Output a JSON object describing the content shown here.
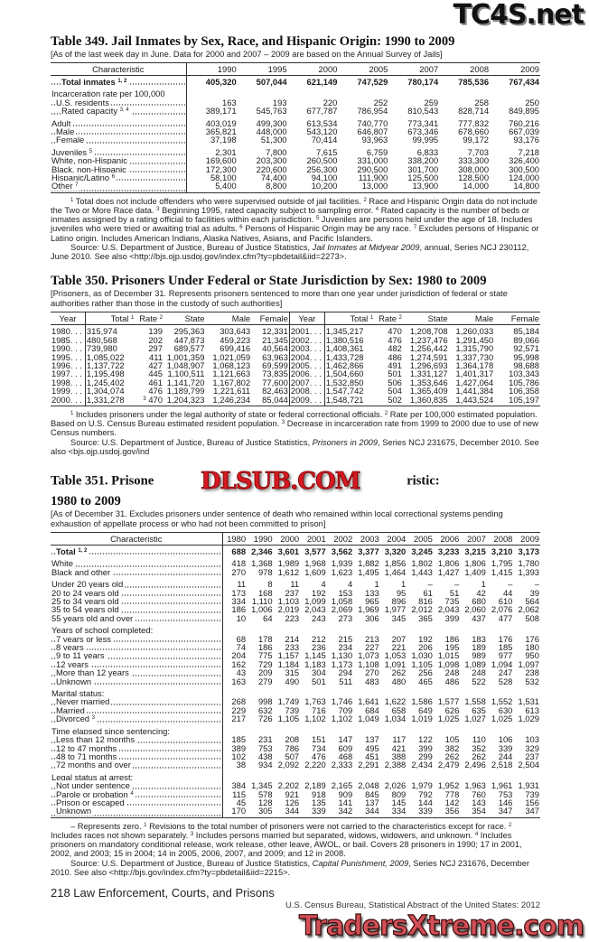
{
  "watermarks": {
    "top": "TC4S.net",
    "middle": "DLSUB.COM",
    "bottom": "TradersXtreme.com"
  },
  "t349": {
    "title": "Table 349. Jail Inmates by Sex, Race, and Hispanic Origin: 1990 to 2009",
    "headnote": "[As of the last week day in June. Data for 2000 and 2007 – 2009 are based on the Annual Survey of Jails]",
    "columns": [
      "Characteristic",
      "1990",
      "1995",
      "2000",
      "2005",
      "2007",
      "2008",
      "2009"
    ],
    "rows": [
      {
        "label": "Total inmates",
        "sup": "1, 2",
        "bold": true,
        "ind": 2,
        "values": [
          "405,320",
          "507,044",
          "621,149",
          "747,529",
          "780,174",
          "785,536",
          "767,434"
        ]
      },
      {
        "label": "Incarceration rate per 100,000",
        "gap": true,
        "values": []
      },
      {
        "label": "U.S. residents",
        "ind": 1,
        "values": [
          "163",
          "193",
          "220",
          "252",
          "259",
          "258",
          "250"
        ]
      },
      {
        "label": "Rated capacity",
        "sup": "3, 4",
        "ind": 2,
        "values": [
          "389,171",
          "545,763",
          "677,787",
          "786,954",
          "810,543",
          "828,714",
          "849,895"
        ]
      },
      {
        "label": "Adult",
        "gap": true,
        "values": [
          "403,019",
          "499,300",
          "613,534",
          "740,770",
          "773,341",
          "777,832",
          "760,216"
        ]
      },
      {
        "label": "Male",
        "ind": 1,
        "values": [
          "365,821",
          "448,000",
          "543,120",
          "646,807",
          "673,346",
          "678,660",
          "667,039"
        ]
      },
      {
        "label": "Female",
        "ind": 1,
        "values": [
          "37,198",
          "51,300",
          "70,414",
          "93,963",
          "99,995",
          "99,172",
          "93,176"
        ]
      },
      {
        "label": "Juveniles",
        "sup": "5",
        "gap": true,
        "values": [
          "2,301",
          "7,800",
          "7,615",
          "6,759",
          "6,833",
          "7,703",
          "7,218"
        ]
      },
      {
        "label": "White, non-Hispanic",
        "values": [
          "169,600",
          "203,300",
          "260,500",
          "331,000",
          "338,200",
          "333,300",
          "326,400"
        ]
      },
      {
        "label": "Black, non-Hispanic",
        "values": [
          "172,300",
          "220,600",
          "256,300",
          "290,500",
          "301,700",
          "308,000",
          "300,500"
        ]
      },
      {
        "label": "Hispanic/Latino",
        "sup": "6",
        "values": [
          "58,100",
          "74,400",
          "94,100",
          "111,900",
          "125,500",
          "128,500",
          "124,000"
        ]
      },
      {
        "label": "Other",
        "sup": "7",
        "values": [
          "5,400",
          "8,800",
          "10,200",
          "13,000",
          "13,900",
          "14,000",
          "14,800"
        ]
      }
    ],
    "footnotes": [
      [
        {
          "sup": "1"
        },
        {
          "t": " Total does not include offenders who were supervised outside of jail facilities. "
        },
        {
          "sup": "2"
        },
        {
          "t": " Race and Hispanic Origin data do not include the Two or More Race data. "
        },
        {
          "sup": "3"
        },
        {
          "t": " Beginning 1995, rated capacity subject to sampling error. "
        },
        {
          "sup": "4"
        },
        {
          "t": " Rated capacity is the number of beds or inmates assigned by a rating official to facilities within each jurisdiction. "
        },
        {
          "sup": "5"
        },
        {
          "t": " Juveniles are persons held under the age of 18. Includes juveniles who were tried or awaiting trial as adults. "
        },
        {
          "sup": "6"
        },
        {
          "t": " Persons of Hispanic Origin may be any race. "
        },
        {
          "sup": "7"
        },
        {
          "t": " Excludes persons of Hispanic or Latino origin. Includes American Indians, Alaska Natives, Asians, and Pacific Islanders."
        }
      ],
      [
        {
          "t": "Source: U.S. Department of Justice, Bureau of Justice Statistics, "
        },
        {
          "i": "Jail Inmates at Midyear 2009"
        },
        {
          "t": ", annual, Series NCJ 230112, June 2010. See also <http://bjs.ojp.usdoj.gov/index.cfm?ty=pbdetail&iid=2273>."
        }
      ]
    ]
  },
  "t350": {
    "title": "Table 350. Prisoners Under Federal or State Jurisdiction by Sex: 1980 to 2009",
    "headnote": "[Prisoners, as of December 31. Represents prisoners sentenced to more than one year under jurisdiction of federal or state authorities rather than those in the custody of such authorities]",
    "columns": [
      {
        "t": "Year"
      },
      {
        "t": "Total",
        "sup": "1"
      },
      {
        "t": "Rate",
        "sup": "2"
      },
      {
        "t": "State"
      },
      {
        "t": "Male"
      },
      {
        "t": "Female"
      },
      {
        "t": "Year"
      },
      {
        "t": "Total",
        "sup": "1"
      },
      {
        "t": "Rate",
        "sup": "2"
      },
      {
        "t": "State"
      },
      {
        "t": "Male"
      },
      {
        "t": "Female"
      }
    ],
    "rows": [
      [
        [
          "1980",
          "315,974",
          "139",
          "295,363",
          "303,643",
          "12,331"
        ],
        [
          "2001",
          "1,345,217",
          "470",
          "1,208,708",
          "1,260,033",
          "85,184"
        ]
      ],
      [
        [
          "1985",
          "480,568",
          "202",
          "447,873",
          "459,223",
          "21,345"
        ],
        [
          "2002",
          "1,380,516",
          "476",
          "1,237,476",
          "1,291,450",
          "89,066"
        ]
      ],
      [
        [
          "1990",
          "739,980",
          "297",
          "689,577",
          "699,416",
          "40,564"
        ],
        [
          "2003",
          "1,408,361",
          "482",
          "1,256,442",
          "1,315,790",
          "92,571"
        ]
      ],
      [
        [
          "1995",
          "1,085,022",
          "411",
          "1,001,359",
          "1,021,059",
          "63,963"
        ],
        [
          "2004",
          "1,433,728",
          "486",
          "1,274,591",
          "1,337,730",
          "95,998"
        ]
      ],
      [
        [
          "1996",
          "1,137,722",
          "427",
          "1,048,907",
          "1,068,123",
          "69,599"
        ],
        [
          "2005",
          "1,462,866",
          "491",
          "1,296,693",
          "1,364,178",
          "98,688"
        ]
      ],
      [
        [
          "1997",
          "1,195,498",
          "445",
          "1,100,511",
          "1,121,663",
          "73,835"
        ],
        [
          "2006",
          "1,504,660",
          "501",
          "1,331,127",
          "1,401,317",
          "103,343"
        ]
      ],
      [
        [
          "1998",
          "1,245,402",
          "461",
          "1,141,720",
          "1,167,802",
          "77,600"
        ],
        [
          "2007",
          "1,532,850",
          "506",
          "1,353,646",
          "1,427,064",
          "105,786"
        ]
      ],
      [
        [
          "1999",
          "1,304,074",
          "476",
          "1,189,799",
          "1,221,611",
          "82,463"
        ],
        [
          "2008",
          "1,547,742",
          "504",
          "1,365,409",
          "1,441,384",
          "106,358"
        ]
      ],
      [
        [
          "2000",
          "1,331,278",
          "470",
          "1,204,323",
          "1,246,234",
          "85,044"
        ],
        [
          "2009",
          "1,548,721",
          "502",
          "1,360,835",
          "1,443,524",
          "105,197"
        ]
      ]
    ],
    "rate_2000_sup": "3",
    "footnotes": [
      [
        {
          "sup": "1"
        },
        {
          "t": " Includes prisoners under the legal authority of state or federal correctional officials. "
        },
        {
          "sup": "2"
        },
        {
          "t": " Rate per 100,000 estimated population. Based on U.S. Census Bureau estimated resident population. "
        },
        {
          "sup": "3"
        },
        {
          "t": " Decrease in incarceration rate from 1999 to 2000 due to use of new Census numbers."
        }
      ],
      [
        {
          "t": "Source: U.S. Department of Justice, Bureau of Justice Statistics, "
        },
        {
          "i": "Prisoners in 2009"
        },
        {
          "t": ", Series NCJ 231675, December 2010. See also <bjs.ojp.usdoj.gov/ind"
        }
      ]
    ]
  },
  "t351": {
    "title_a": "Table 351. Prisone",
    "title_b": "ristic:",
    "title_c": "1980 to 2009",
    "headnote": "[As of December 31. Excludes prisoners under sentence of death who remained within local correctional systems pending exhaustion of appellate process or who had not been committed to prison]",
    "columns": [
      "Characteristic",
      "1980",
      "1990",
      "2000",
      "2001",
      "2002",
      "2003",
      "2004",
      "2005",
      "2006",
      "2007",
      "2008",
      "2009"
    ],
    "rows": [
      {
        "label": "Total",
        "sup": "1, 2",
        "bold": true,
        "ind": 1,
        "values": [
          "688",
          "2,346",
          "3,601",
          "3,577",
          "3,562",
          "3,377",
          "3,320",
          "3,245",
          "3,233",
          "3,215",
          "3,210",
          "3,173"
        ]
      },
      {
        "label": "White",
        "gap": true,
        "values": [
          "418",
          "1,368",
          "1,989",
          "1,968",
          "1,939",
          "1,882",
          "1,856",
          "1,802",
          "1,806",
          "1,806",
          "1,795",
          "1,780"
        ]
      },
      {
        "label": "Black and other",
        "values": [
          "270",
          "978",
          "1,612",
          "1,609",
          "1,623",
          "1,495",
          "1,464",
          "1,443",
          "1,427",
          "1,409",
          "1,415",
          "1,393"
        ]
      },
      {
        "label": "Under 20 years old",
        "gap": true,
        "values": [
          "11",
          "8",
          "11",
          "4",
          "4",
          "1",
          "1",
          "–",
          "–",
          "1",
          "–",
          "–"
        ]
      },
      {
        "label": "20 to 24 years old",
        "values": [
          "173",
          "168",
          "237",
          "192",
          "153",
          "133",
          "95",
          "61",
          "51",
          "42",
          "44",
          "39"
        ]
      },
      {
        "label": "25 to 34 years old",
        "values": [
          "334",
          "1,110",
          "1,103",
          "1,099",
          "1,058",
          "965",
          "896",
          "816",
          "735",
          "680",
          "610",
          "564"
        ]
      },
      {
        "label": "35 to 54 years old",
        "values": [
          "186",
          "1,006",
          "2,019",
          "2,043",
          "2,069",
          "1,969",
          "1,977",
          "2,012",
          "2,043",
          "2,060",
          "2,076",
          "2,062"
        ]
      },
      {
        "label": "55 years old and over",
        "values": [
          "10",
          "64",
          "223",
          "243",
          "273",
          "306",
          "345",
          "365",
          "399",
          "437",
          "477",
          "508"
        ]
      },
      {
        "label": "Years of school completed:",
        "gap": true,
        "values": []
      },
      {
        "label": "7 years or less",
        "ind": 1,
        "values": [
          "68",
          "178",
          "214",
          "212",
          "215",
          "213",
          "207",
          "192",
          "186",
          "183",
          "176",
          "176"
        ]
      },
      {
        "label": "8 years",
        "ind": 1,
        "values": [
          "74",
          "186",
          "233",
          "236",
          "234",
          "227",
          "221",
          "206",
          "195",
          "189",
          "185",
          "180"
        ]
      },
      {
        "label": "9 to 11 years",
        "ind": 1,
        "values": [
          "204",
          "775",
          "1,157",
          "1,145",
          "1,130",
          "1,073",
          "1,053",
          "1,030",
          "1,015",
          "989",
          "977",
          "950"
        ]
      },
      {
        "label": "12 years",
        "ind": 1,
        "values": [
          "162",
          "729",
          "1,184",
          "1,183",
          "1,173",
          "1,108",
          "1,091",
          "1,105",
          "1,098",
          "1,089",
          "1,094",
          "1,097"
        ]
      },
      {
        "label": "More than 12 years",
        "ind": 1,
        "values": [
          "43",
          "209",
          "315",
          "304",
          "294",
          "270",
          "262",
          "256",
          "248",
          "248",
          "247",
          "238"
        ]
      },
      {
        "label": "Unknown",
        "ind": 1,
        "values": [
          "163",
          "279",
          "490",
          "501",
          "511",
          "483",
          "480",
          "465",
          "486",
          "522",
          "528",
          "532"
        ]
      },
      {
        "label": "Marital status:",
        "gap": true,
        "values": []
      },
      {
        "label": "Never married",
        "ind": 1,
        "values": [
          "268",
          "998",
          "1,749",
          "1,763",
          "1,746",
          "1,641",
          "1,622",
          "1,586",
          "1,577",
          "1,558",
          "1,552",
          "1,531"
        ]
      },
      {
        "label": "Married",
        "ind": 1,
        "values": [
          "229",
          "632",
          "739",
          "716",
          "709",
          "684",
          "658",
          "649",
          "626",
          "635",
          "630",
          "613"
        ]
      },
      {
        "label": "Divorced",
        "sup": "3",
        "ind": 1,
        "values": [
          "217",
          "726",
          "1,105",
          "1,102",
          "1,102",
          "1,049",
          "1,034",
          "1,019",
          "1,025",
          "1,027",
          "1,025",
          "1,029"
        ]
      },
      {
        "label": "Time elapsed since sentencing:",
        "gap": true,
        "values": []
      },
      {
        "label": "Less than 12 months",
        "ind": 1,
        "values": [
          "185",
          "231",
          "208",
          "151",
          "147",
          "137",
          "117",
          "122",
          "105",
          "110",
          "106",
          "103"
        ]
      },
      {
        "label": "12 to 47 months",
        "ind": 1,
        "values": [
          "389",
          "753",
          "786",
          "734",
          "609",
          "495",
          "421",
          "399",
          "382",
          "352",
          "339",
          "329"
        ]
      },
      {
        "label": "48 to 71 months",
        "ind": 1,
        "values": [
          "102",
          "438",
          "507",
          "476",
          "468",
          "451",
          "388",
          "299",
          "262",
          "262",
          "244",
          "237"
        ]
      },
      {
        "label": "72 months and over",
        "ind": 1,
        "values": [
          "38",
          "934",
          "2,092",
          "2,220",
          "2,333",
          "2,291",
          "2,388",
          "2,434",
          "2,479",
          "2,496",
          "2,518",
          "2,504"
        ]
      },
      {
        "label": "Legal status at arrest:",
        "gap": true,
        "values": []
      },
      {
        "label": "Not under sentence",
        "ind": 1,
        "values": [
          "384",
          "1,345",
          "2,202",
          "2,189",
          "2,165",
          "2,048",
          "2,026",
          "1,979",
          "1,952",
          "1,963",
          "1,961",
          "1,931"
        ]
      },
      {
        "label": "Parole or probation",
        "sup": "4",
        "ind": 1,
        "values": [
          "115",
          "578",
          "921",
          "918",
          "909",
          "845",
          "809",
          "792",
          "778",
          "760",
          "753",
          "739"
        ]
      },
      {
        "label": "Prison or escaped",
        "ind": 1,
        "values": [
          "45",
          "128",
          "126",
          "135",
          "141",
          "137",
          "145",
          "144",
          "142",
          "143",
          "146",
          "156"
        ]
      },
      {
        "label": "Unknown",
        "ind": 1,
        "values": [
          "170",
          "305",
          "344",
          "339",
          "342",
          "344",
          "334",
          "339",
          "356",
          "354",
          "347",
          "347"
        ]
      }
    ],
    "footnotes": [
      [
        {
          "t": "– Represents zero. "
        },
        {
          "sup": "1"
        },
        {
          "t": " Revisions to the total number of prisoners were not carried to the characteristics except for race. "
        },
        {
          "sup": "2"
        },
        {
          "t": " Includes races not shown separately. "
        },
        {
          "sup": "3"
        },
        {
          "t": " Includes persons married but separated, widows, widowers, and unknown. "
        },
        {
          "sup": "4"
        },
        {
          "t": " Includes prisoners on mandatory conditional release, work release, other leave, AWOL, or bail. Covers 28 prisoners in 1990; 17 in 2001, 2002, and 2003; 15 in 2004; 14 in 2005, 2006, 2007, and 2009; and 12 in 2008."
        }
      ],
      [
        {
          "t": "Source: U.S. Department of Justice, Bureau of Justice Statistics, "
        },
        {
          "i": "Capital Punishment, 2009"
        },
        {
          "t": ", Series NCJ 231676, December 2010. See also <http://bjs.gov/index.cfm?ty=pbdetail&iid=2215>."
        }
      ]
    ]
  },
  "footer": {
    "page": "218  Law Enforcement, Courts, and Prisons",
    "publication": "U.S. Census Bureau, Statistical Abstract of the United States: 2012"
  }
}
